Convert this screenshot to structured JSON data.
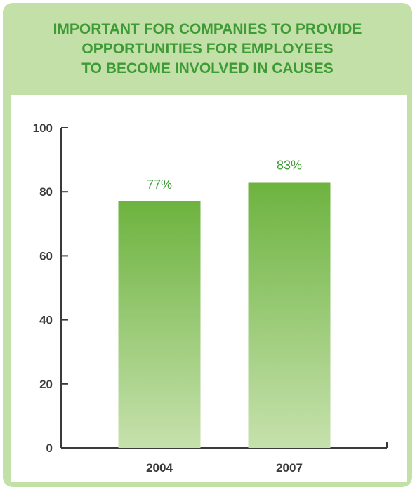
{
  "chart_data": {
    "type": "bar",
    "title_lines": [
      "IMPORTANT FOR COMPANIES TO PROVIDE",
      "OPPORTUNITIES FOR EMPLOYEES",
      "TO BECOME INVOLVED IN CAUSES"
    ],
    "categories": [
      "2004",
      "2007"
    ],
    "values": [
      77,
      83
    ],
    "value_labels": [
      "77%",
      "83%"
    ],
    "ylim": [
      0,
      100
    ],
    "yticks": [
      0,
      20,
      40,
      60,
      80,
      100
    ],
    "grid": false,
    "legend": "none",
    "colors": {
      "bar_top": "#6db33f",
      "bar_bottom": "#c6e1ad",
      "title": "#3d9a34",
      "value_label": "#3d9a34",
      "frame": "#c2e0a8",
      "axis": "#3a3a3a"
    }
  }
}
